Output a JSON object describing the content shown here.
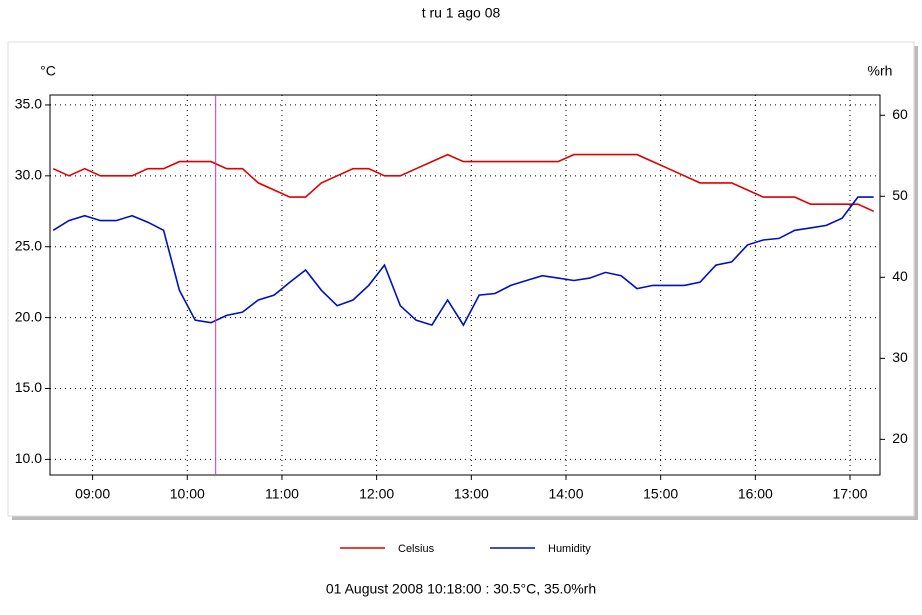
{
  "chart_data": {
    "type": "line",
    "title": "t ru 1 ago 08",
    "y_label": "°C",
    "y2_label": "%rh",
    "x": [
      "08:35",
      "08:45",
      "08:55",
      "09:05",
      "09:15",
      "09:25",
      "09:35",
      "09:45",
      "09:55",
      "10:05",
      "10:15",
      "10:25",
      "10:35",
      "10:45",
      "10:55",
      "11:05",
      "11:15",
      "11:25",
      "11:35",
      "11:45",
      "11:55",
      "12:05",
      "12:15",
      "12:25",
      "12:35",
      "12:45",
      "12:55",
      "13:05",
      "13:15",
      "13:25",
      "13:35",
      "13:45",
      "13:55",
      "14:05",
      "14:15",
      "14:25",
      "14:35",
      "14:45",
      "14:55",
      "15:05",
      "15:15",
      "15:25",
      "15:35",
      "15:45",
      "15:55",
      "16:05",
      "16:15",
      "16:25",
      "16:35",
      "16:45",
      "16:55",
      "17:05",
      "17:15"
    ],
    "xlim": [
      "08:33",
      "17:19"
    ],
    "xticks": [
      "09:00",
      "10:00",
      "11:00",
      "12:00",
      "13:00",
      "14:00",
      "15:00",
      "16:00",
      "17:00"
    ],
    "ylim": [
      8.9,
      35.7
    ],
    "yticks": [
      {
        "value": 10,
        "label": "10.0"
      },
      {
        "value": 15,
        "label": "15.0"
      },
      {
        "value": 20,
        "label": "20.0"
      },
      {
        "value": 25,
        "label": "25.0"
      },
      {
        "value": 30,
        "label": "30.0"
      },
      {
        "value": 35,
        "label": "35.0"
      }
    ],
    "y2lim": [
      15.6,
      62.5
    ],
    "y2ticks": [
      20,
      30,
      40,
      50,
      60
    ],
    "grid": true,
    "legend": "bottom",
    "cursor_x": "10:18",
    "cursor_color": "#cc33cc",
    "readout": "01 August 2008 10:18:00 : 30.5°C, 35.0%rh",
    "series": [
      {
        "name": "Celsius",
        "color": "#e00000",
        "values": [
          30.5,
          30.0,
          30.5,
          30.0,
          30.0,
          30.0,
          30.5,
          30.5,
          31.0,
          31.0,
          31.0,
          30.5,
          30.5,
          29.5,
          29.0,
          28.5,
          28.5,
          29.5,
          30.0,
          30.5,
          30.5,
          30.0,
          30.0,
          30.5,
          31.0,
          31.5,
          31.0,
          31.0,
          31.0,
          31.0,
          31.0,
          31.0,
          31.0,
          31.5,
          31.5,
          31.5,
          31.5,
          31.5,
          31.0,
          30.5,
          30.0,
          29.5,
          29.5,
          29.5,
          29.0,
          28.5,
          28.5,
          28.5,
          28.0,
          28.0,
          28.0,
          28.0,
          27.5
        ]
      },
      {
        "name": "Humidity",
        "color": "#0010c0",
        "axis": "y2",
        "values": [
          45.8,
          47,
          47.6,
          47,
          47,
          47.6,
          46.8,
          45.8,
          38.4,
          34.7,
          34.4,
          35.3,
          35.7,
          37.2,
          37.8,
          39.4,
          40.9,
          38.4,
          36.5,
          37.2,
          39,
          41.5,
          36.5,
          34.7,
          34.1,
          37.2,
          34.1,
          37.8,
          38,
          39,
          39.6,
          40.2,
          39.9,
          39.6,
          39.9,
          40.6,
          40.2,
          38.6,
          39,
          39,
          39,
          39.4,
          41.5,
          41.9,
          44,
          44.6,
          44.8,
          45.8,
          46.1,
          46.4,
          47.3,
          49.9,
          49.9
        ]
      }
    ]
  }
}
